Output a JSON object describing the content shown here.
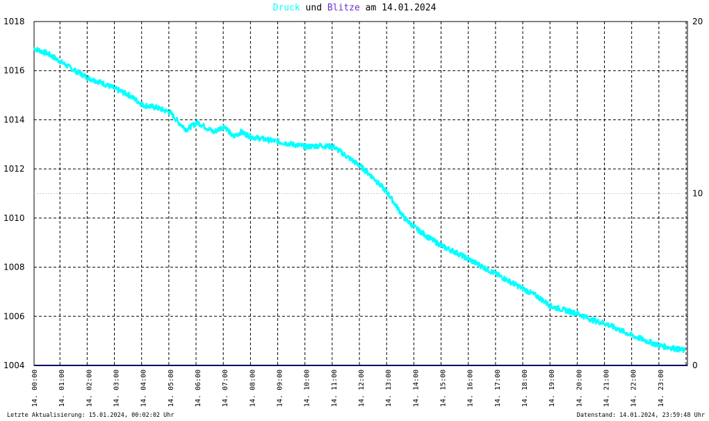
{
  "header": {
    "title_part1": "Druck",
    "title_part2": "und",
    "title_part3": "Blitze",
    "title_part4": "am 14.01.2024",
    "colors": {
      "druck": "#00ffff",
      "blitze": "#6633cc",
      "text": "#000000"
    }
  },
  "footer": {
    "left": "Letzte Aktualisierung: 15.01.2024, 00:02:02 Uhr",
    "right": "Datenstand: 14.01.2024, 23:59:48 Uhr"
  },
  "chart_data": {
    "type": "line",
    "title": "Druck und Blitze am 14.01.2024",
    "x_unit": "time of day, hours",
    "xlim": [
      0,
      24
    ],
    "x_tick_labels": [
      "14. 00:00",
      "14. 01:00",
      "14. 02:00",
      "14. 03:00",
      "14. 04:00",
      "14. 05:00",
      "14. 06:00",
      "14. 07:00",
      "14. 08:00",
      "14. 09:00",
      "14. 10:00",
      "14. 11:00",
      "14. 12:00",
      "14. 13:00",
      "14. 14:00",
      "14. 15:00",
      "14. 16:00",
      "14. 17:00",
      "14. 18:00",
      "14. 19:00",
      "14. 20:00",
      "14. 21:00",
      "14. 22:00",
      "14. 23:00"
    ],
    "y_left": {
      "lim": [
        1004,
        1018
      ],
      "ticks": [
        "1004",
        "1006",
        "1008",
        "1010",
        "1012",
        "1014",
        "1016",
        "1018"
      ]
    },
    "y_right": {
      "lim": [
        0,
        20
      ],
      "ticks": [
        "0",
        "10",
        "20"
      ]
    },
    "grid": true,
    "series": [
      {
        "name": "Druck",
        "color": "#00ffff",
        "axis": "left",
        "x": [
          0,
          0.5,
          1,
          1.5,
          2,
          2.5,
          3,
          3.5,
          4,
          4.5,
          5,
          5.3,
          5.6,
          6,
          6.3,
          6.6,
          7,
          7.3,
          7.6,
          8,
          8.5,
          9,
          9.5,
          10,
          10.5,
          11,
          11.5,
          12,
          12.5,
          13,
          13.3,
          13.6,
          14,
          14.5,
          15,
          15.5,
          16,
          16.5,
          17,
          17.5,
          18,
          18.5,
          19,
          19.5,
          20,
          20.5,
          21,
          21.5,
          22,
          22.5,
          23,
          23.5,
          23.9
        ],
        "y": [
          1016.9,
          1016.7,
          1016.35,
          1016.0,
          1015.7,
          1015.5,
          1015.25,
          1015.0,
          1014.6,
          1014.5,
          1014.3,
          1013.9,
          1013.6,
          1013.9,
          1013.7,
          1013.5,
          1013.75,
          1013.3,
          1013.5,
          1013.3,
          1013.2,
          1013.1,
          1013.0,
          1012.9,
          1012.95,
          1012.9,
          1012.5,
          1012.1,
          1011.6,
          1011.0,
          1010.5,
          1010.0,
          1009.6,
          1009.2,
          1008.85,
          1008.6,
          1008.3,
          1008.0,
          1007.7,
          1007.4,
          1007.1,
          1006.8,
          1006.4,
          1006.25,
          1006.1,
          1005.85,
          1005.7,
          1005.45,
          1005.2,
          1005.0,
          1004.8,
          1004.7,
          1004.6
        ]
      },
      {
        "name": "Blitze",
        "color": "#000066",
        "axis": "right",
        "x": [
          0,
          23.9
        ],
        "y": [
          0,
          0
        ]
      }
    ]
  }
}
